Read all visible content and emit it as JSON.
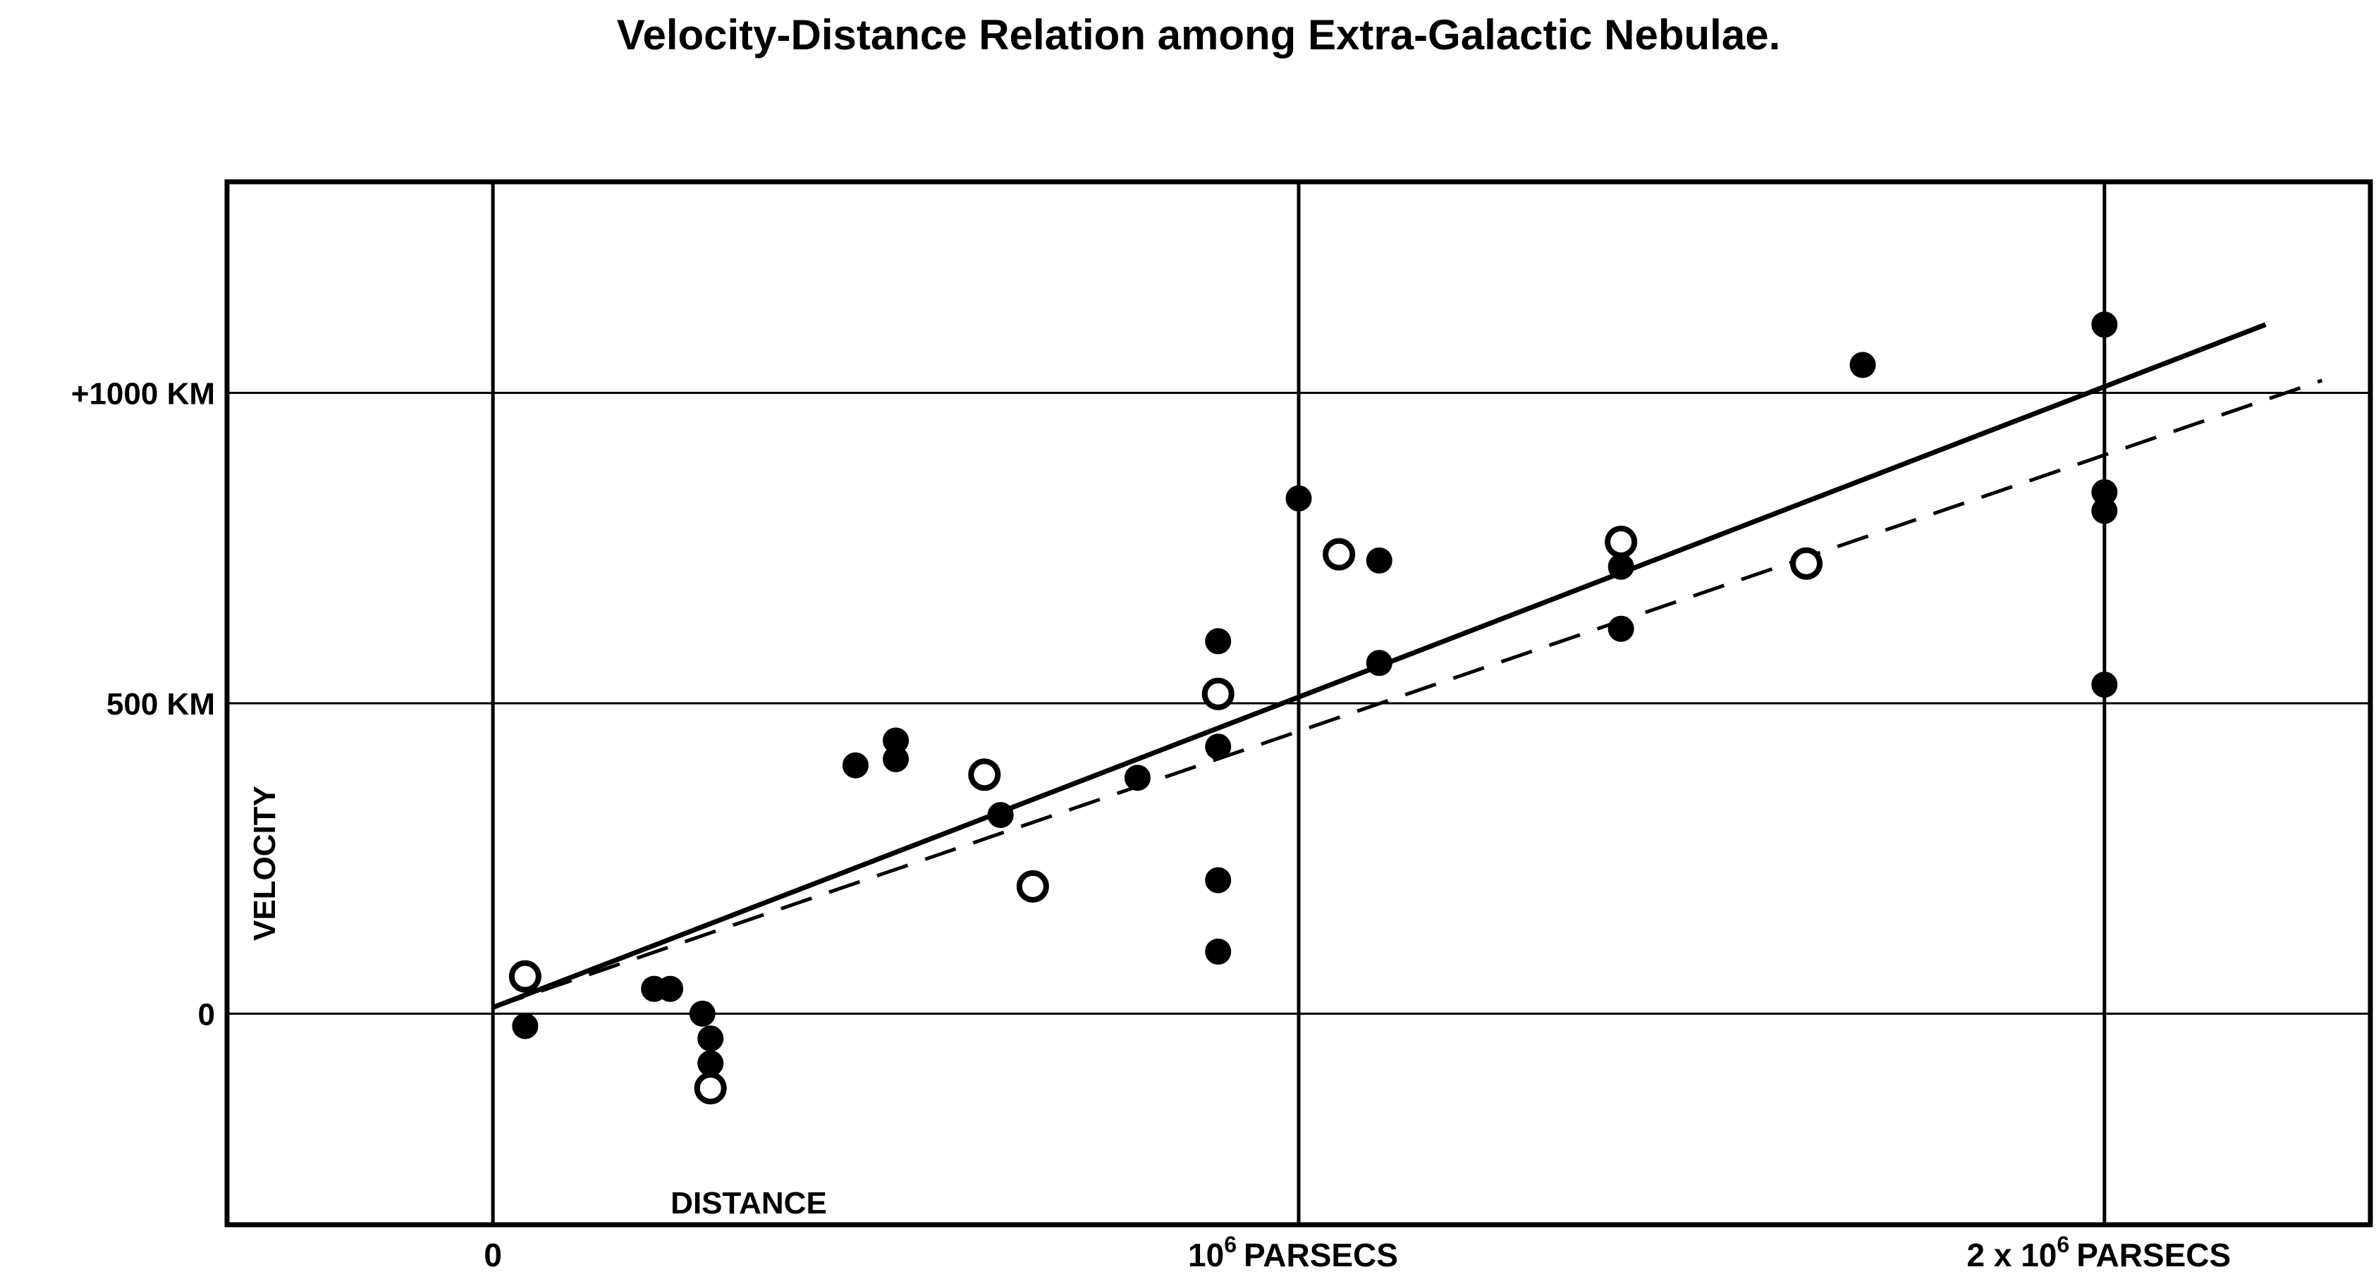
{
  "chart_data": {
    "type": "scatter",
    "title": "Velocity-Distance Relation among Extra-Galactic Nebulae.",
    "xlabel": "DISTANCE",
    "ylabel": "VELOCITY",
    "xlim": [
      -0.33,
      2.33
    ],
    "ylim": [
      -340,
      1340
    ],
    "x_ticks": [
      {
        "value": 0,
        "label": "0",
        "base": "",
        "exp": "",
        "unit": ""
      },
      {
        "value": 1,
        "label": "10⁶ PARSECS",
        "base": "10",
        "exp": "6",
        "unit": "PARSECS"
      },
      {
        "value": 2,
        "label": "2 x 10⁶ PARSECS",
        "base": "2 x 10",
        "exp": "6",
        "unit": "PARSECS"
      }
    ],
    "y_ticks": [
      {
        "value": 0,
        "label": "0"
      },
      {
        "value": 500,
        "label": "500 KM"
      },
      {
        "value": 1000,
        "label": "+1000 KM"
      }
    ],
    "grid": true,
    "series": [
      {
        "marker": "filled",
        "points": [
          [
            0.04,
            -20
          ],
          [
            0.2,
            40
          ],
          [
            0.22,
            40
          ],
          [
            0.26,
            0
          ],
          [
            0.27,
            -40
          ],
          [
            0.27,
            -80
          ],
          [
            0.45,
            400
          ],
          [
            0.5,
            440
          ],
          [
            0.5,
            410
          ],
          [
            0.63,
            320
          ],
          [
            0.8,
            380
          ],
          [
            0.9,
            600
          ],
          [
            0.9,
            430
          ],
          [
            0.9,
            215
          ],
          [
            0.9,
            100
          ],
          [
            1.0,
            830
          ],
          [
            1.1,
            730
          ],
          [
            1.1,
            565
          ],
          [
            1.4,
            620
          ],
          [
            1.4,
            720
          ],
          [
            1.7,
            1045
          ],
          [
            2.0,
            1110
          ],
          [
            2.0,
            840
          ],
          [
            2.0,
            810
          ],
          [
            2.0,
            530
          ]
        ]
      },
      {
        "marker": "open",
        "points": [
          [
            0.04,
            60
          ],
          [
            0.27,
            -120
          ],
          [
            0.61,
            385
          ],
          [
            0.67,
            205
          ],
          [
            0.9,
            515
          ],
          [
            1.05,
            740
          ],
          [
            1.4,
            760
          ],
          [
            1.63,
            725
          ]
        ]
      }
    ],
    "lines": [
      {
        "style": "solid",
        "x": [
          0,
          2.2
        ],
        "y": [
          10,
          1110
        ]
      },
      {
        "style": "dashed",
        "x": [
          0,
          2.27
        ],
        "y": [
          10,
          1020
        ]
      }
    ]
  }
}
